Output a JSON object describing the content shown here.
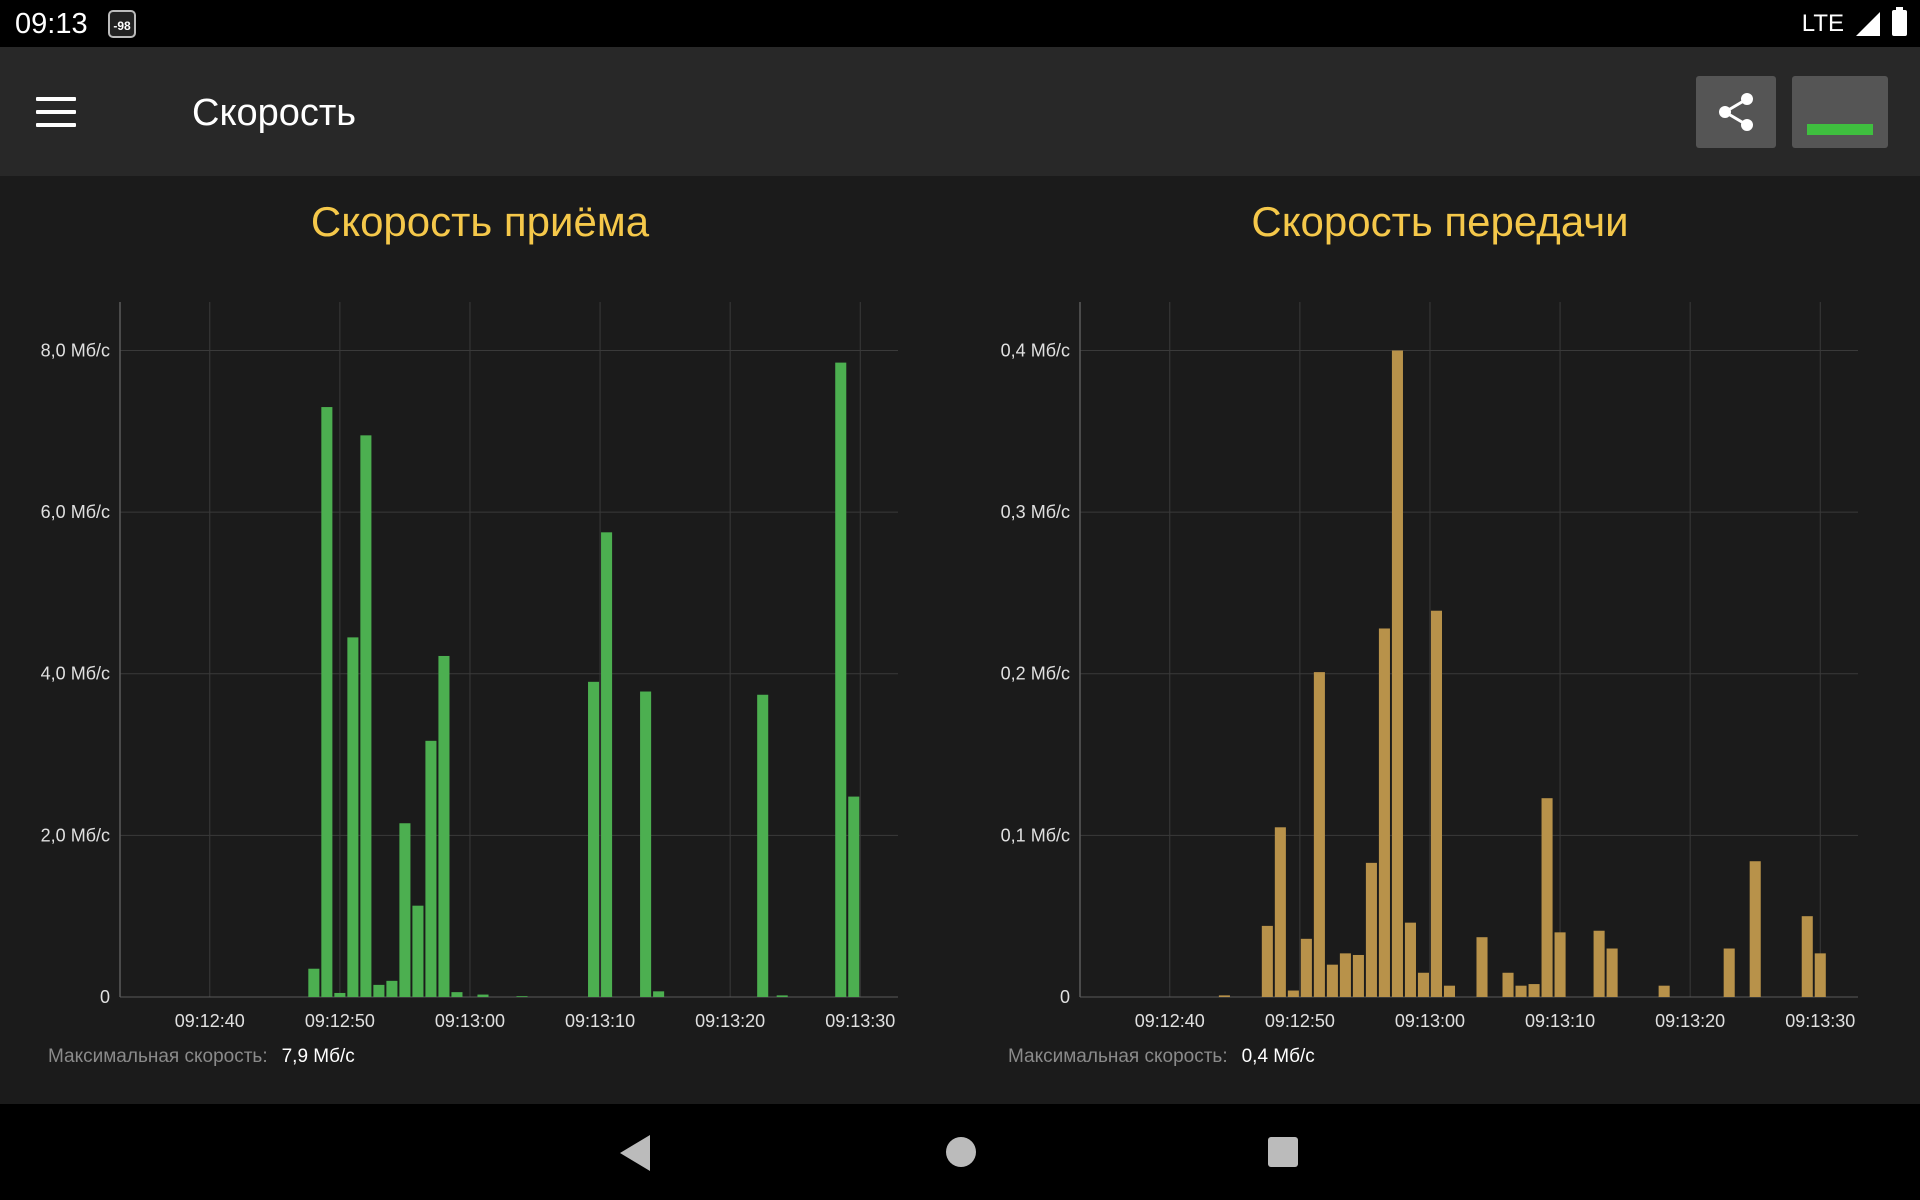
{
  "status_bar": {
    "time": "09:13",
    "badge": "-98",
    "network": "LTE"
  },
  "app_bar": {
    "title": "Скорость"
  },
  "icons": {
    "menu": "menu-icon",
    "share": "share-icon",
    "minimize": "minimize-icon"
  },
  "colors": {
    "rx_bars": "#4caf50",
    "tx_bars": "#b8924a",
    "title": "#f5c84a",
    "minimize_bar": "#3fbf3f"
  },
  "chart_data": [
    {
      "type": "bar",
      "title": "Скорость приёма",
      "ylim": [
        0,
        8.6
      ],
      "ytick_values": [
        0,
        2,
        4,
        6,
        8
      ],
      "ytick_labels": [
        "0",
        "2,0 Мб/с",
        "4,0 Мб/с",
        "6,0 Мб/с",
        "8,0 Мб/с"
      ],
      "xtick_labels": [
        "09:12:40",
        "09:12:50",
        "09:13:00",
        "09:13:10",
        "09:13:20",
        "09:13:30"
      ],
      "grid": true,
      "bar_width_seconds": 0.85,
      "series": [
        {
          "seconds": [
            48.0,
            49.0,
            50.0,
            51.0,
            52.0,
            53.0,
            54.0,
            55.0,
            56.0,
            57.0,
            58.0,
            59.0,
            61.0,
            64.0,
            69.5,
            70.5,
            73.5,
            74.5,
            82.5,
            84.0,
            88.5,
            89.5
          ],
          "values": [
            0.35,
            7.3,
            0.05,
            4.45,
            6.95,
            0.15,
            0.2,
            2.15,
            1.13,
            3.17,
            4.22,
            0.06,
            0.03,
            0.01,
            3.9,
            5.75,
            3.78,
            0.07,
            3.74,
            0.02,
            7.85,
            2.48
          ]
        }
      ],
      "max_label": "Максимальная скорость:",
      "max_value": "7,9 Мб/с"
    },
    {
      "type": "bar",
      "title": "Скорость передачи",
      "ylim": [
        0,
        0.43
      ],
      "ytick_values": [
        0,
        0.1,
        0.2,
        0.3,
        0.4
      ],
      "ytick_labels": [
        "0",
        "0,1 Мб/с",
        "0,2 Мб/с",
        "0,3 Мб/с",
        "0,4 Мб/с"
      ],
      "xtick_labels": [
        "09:12:40",
        "09:12:50",
        "09:13:00",
        "09:13:10",
        "09:13:20",
        "09:13:30"
      ],
      "grid": true,
      "bar_width_seconds": 0.85,
      "series": [
        {
          "seconds": [
            44.2,
            47.5,
            48.5,
            49.5,
            50.5,
            51.5,
            52.5,
            53.5,
            54.5,
            55.5,
            56.5,
            57.5,
            58.5,
            59.5,
            60.5,
            61.5,
            64.0,
            66.0,
            67.0,
            68.0,
            69.0,
            70.0,
            73.0,
            74.0,
            78.0,
            83.0,
            85.0,
            89.0,
            90.0
          ],
          "values": [
            0.001,
            0.044,
            0.105,
            0.004,
            0.036,
            0.201,
            0.02,
            0.027,
            0.026,
            0.083,
            0.228,
            0.4,
            0.046,
            0.015,
            0.239,
            0.007,
            0.037,
            0.015,
            0.007,
            0.008,
            0.123,
            0.04,
            0.041,
            0.03,
            0.007,
            0.03,
            0.084,
            0.05,
            0.027
          ]
        }
      ],
      "max_label": "Максимальная скорость:",
      "max_value": "0,4 Мб/с"
    }
  ],
  "nav_bar": {
    "back": "back-icon",
    "home": "home-icon",
    "recent": "recent-apps-icon"
  }
}
